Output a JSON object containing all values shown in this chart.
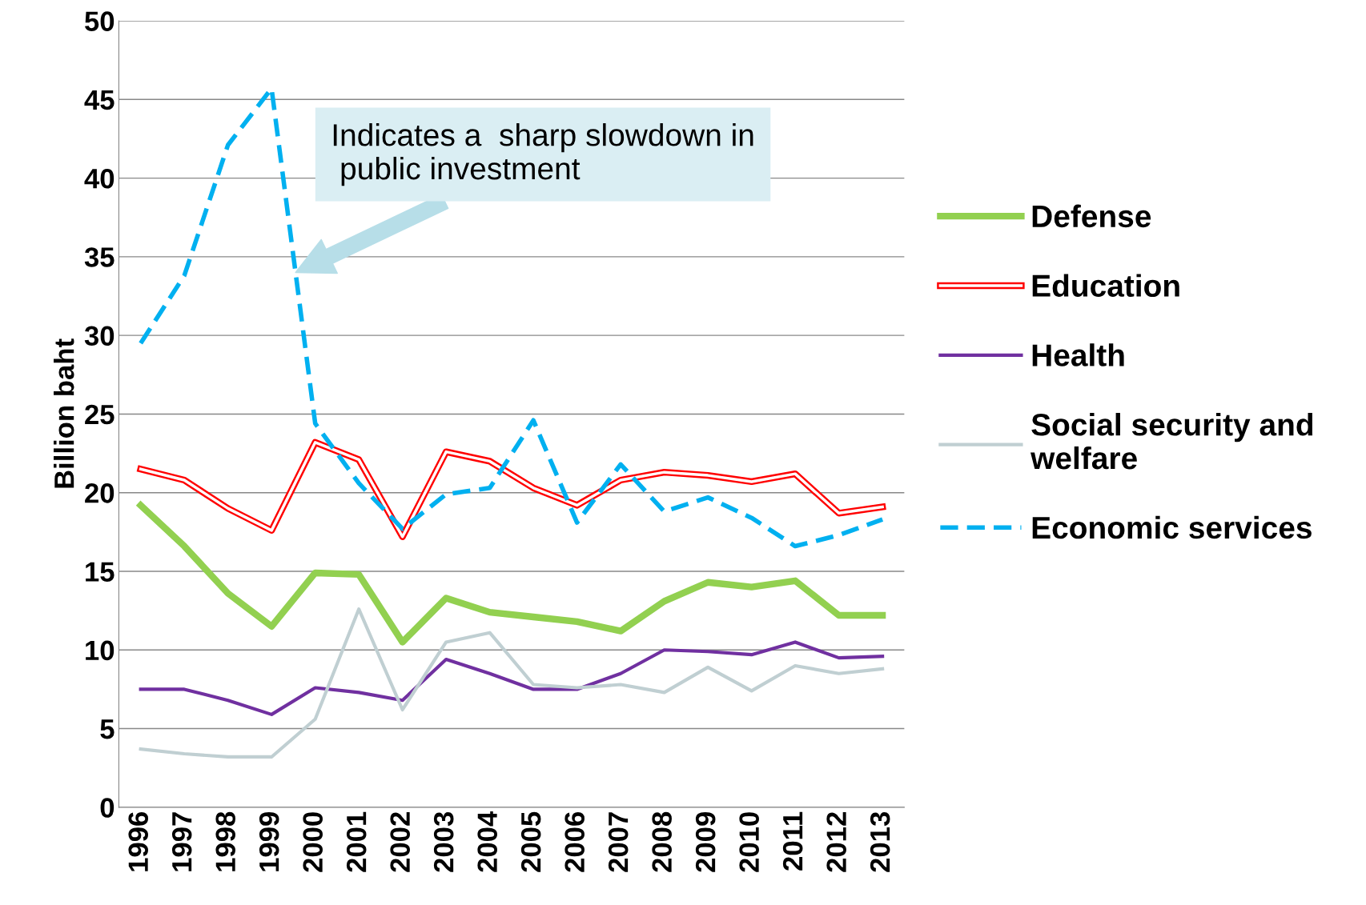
{
  "chart_data": {
    "type": "line",
    "ylabel": "Billion baht",
    "categories": [
      "1996",
      "1997",
      "1998",
      "1999",
      "2000",
      "2001",
      "2002",
      "2003",
      "2004",
      "2005",
      "2006",
      "2007",
      "2008",
      "2009",
      "2010",
      "2011",
      "2012",
      "2013"
    ],
    "series": [
      {
        "name": "Defense",
        "color": "#92d050",
        "values": [
          19.2,
          16.6,
          13.6,
          11.5,
          14.9,
          14.8,
          10.5,
          13.3,
          12.4,
          12.1,
          11.8,
          11.2,
          13.1,
          14.3,
          14.0,
          14.4,
          12.2,
          12.2
        ]
      },
      {
        "name": "Education",
        "color": "#ff0000",
        "values": [
          21.5,
          20.8,
          19.0,
          17.6,
          23.2,
          22.1,
          17.2,
          22.6,
          22.0,
          20.3,
          19.2,
          20.8,
          21.3,
          21.1,
          20.7,
          21.2,
          18.7,
          19.1
        ]
      },
      {
        "name": "Health",
        "color": "#7030a0",
        "values": [
          7.5,
          7.5,
          6.8,
          5.9,
          7.6,
          7.3,
          6.8,
          9.4,
          8.5,
          7.5,
          7.5,
          8.5,
          10.0,
          9.9,
          9.7,
          10.5,
          9.5,
          9.6
        ]
      },
      {
        "name": "Social security and\nwelfare",
        "color": "#c0cfd2",
        "values": [
          3.7,
          3.4,
          3.2,
          3.2,
          5.6,
          12.6,
          6.2,
          10.5,
          11.1,
          7.8,
          7.6,
          7.8,
          7.3,
          8.9,
          7.4,
          9.0,
          8.5,
          8.8
        ]
      },
      {
        "name": "Economic services",
        "color": "#00b0f0",
        "line_style": "dashed",
        "values": [
          29.5,
          33.8,
          42.1,
          45.7,
          24.4,
          20.6,
          17.7,
          19.9,
          20.3,
          24.6,
          18.1,
          21.8,
          18.8,
          19.7,
          18.4,
          16.6,
          17.3,
          18.3
        ]
      }
    ],
    "ylim": [
      0,
      50
    ],
    "yticks": [
      0,
      5,
      10,
      15,
      20,
      25,
      30,
      35,
      40,
      45,
      50
    ],
    "grid": "y",
    "legend": "right",
    "marker": "none",
    "line_style": "solid",
    "annotations": [
      "Indicates a  sharp slowdown in\n public investment"
    ]
  }
}
